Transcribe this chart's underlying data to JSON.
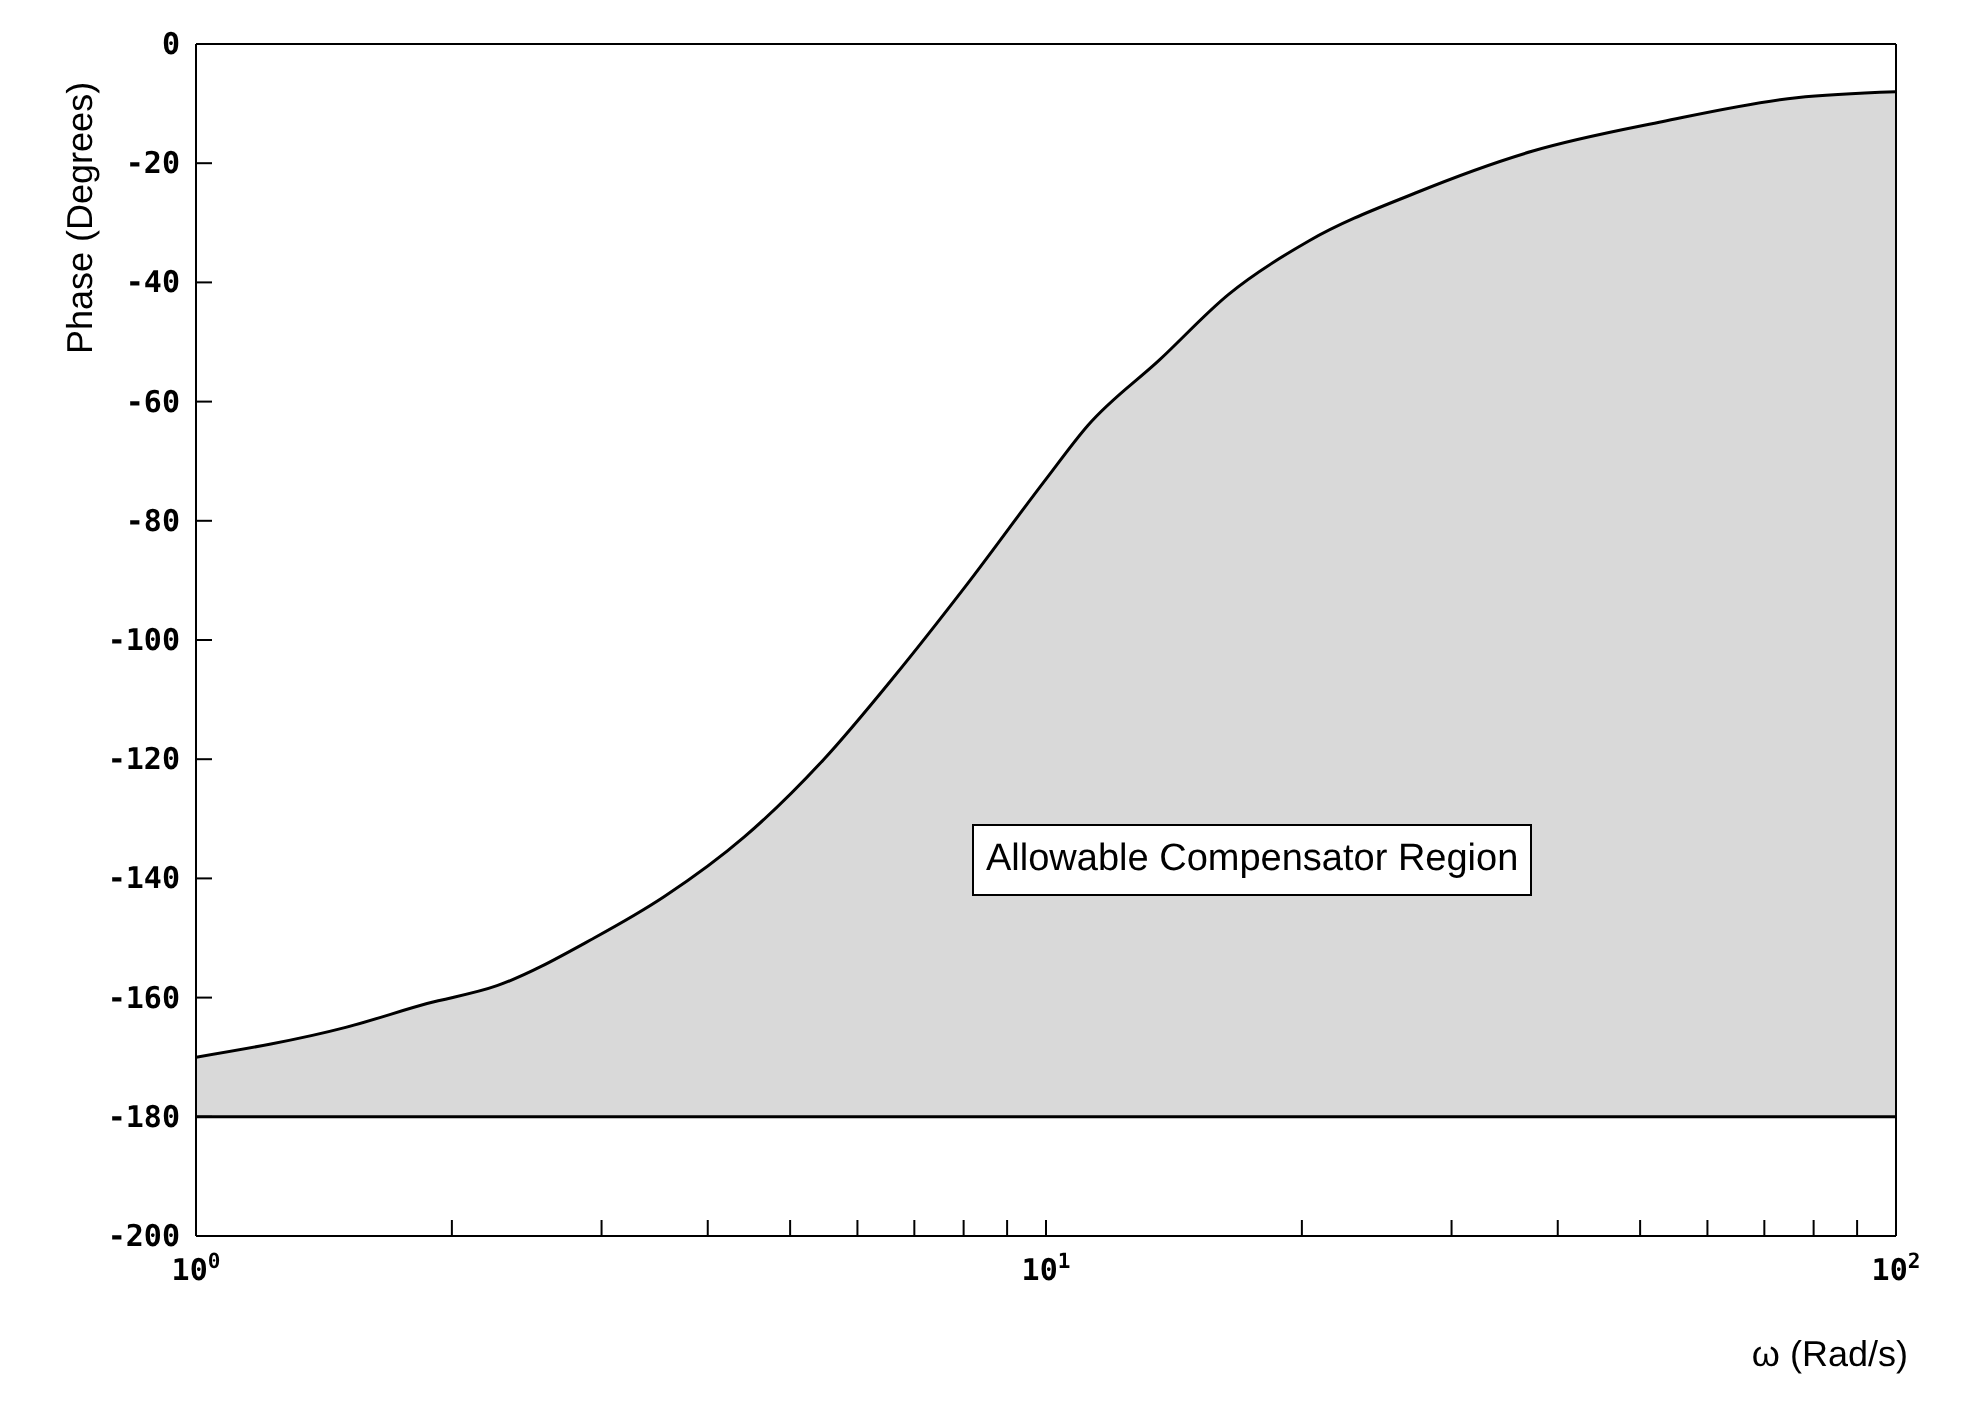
{
  "chart_data": {
    "type": "line",
    "xlabel": "ω (Rad/s)",
    "ylabel": "Phase (Degrees)",
    "x": [
      1,
      1.5,
      1.87,
      2.26,
      2.94,
      3.56,
      4.42,
      5.48,
      6.64,
      8.04,
      10,
      11.2,
      13.6,
      16.4,
      20.4,
      27.2,
      37.3,
      53.2,
      76.4,
      100
    ],
    "series": [
      {
        "color": "#000000",
        "values": [
          -170,
          -165,
          -161,
          -158,
          -150,
          -143,
          -133,
          -120,
          -106,
          -91,
          -73,
          -64,
          -53,
          -42,
          -33,
          -25,
          -18,
          -13,
          -9,
          -8
        ],
        "lower": [
          -180,
          -180,
          -180,
          -180,
          -180,
          -180,
          -180,
          -180,
          -180,
          -180,
          -180,
          -180,
          -180,
          -180,
          -180,
          -180,
          -180,
          -180,
          -180,
          -180
        ],
        "upper": [
          -170,
          -165,
          -161,
          -158,
          -150,
          -143,
          -133,
          -120,
          -106,
          -91,
          -73,
          -64,
          -53,
          -42,
          -33,
          -25,
          -18,
          -13,
          -9,
          -8
        ]
      }
    ],
    "log": "x",
    "xlim": [
      1,
      100
    ],
    "xticks": [
      {
        "value": 1,
        "label": "10$^{0}$"
      },
      {
        "value": 2,
        "label": null
      },
      {
        "value": 3,
        "label": null
      },
      {
        "value": 4,
        "label": null
      },
      {
        "value": 5,
        "label": null
      },
      {
        "value": 6,
        "label": null
      },
      {
        "value": 7,
        "label": null
      },
      {
        "value": 8,
        "label": null
      },
      {
        "value": 9,
        "label": null
      },
      {
        "value": 10,
        "label": "10$^{1}$"
      },
      {
        "value": 20,
        "label": null
      },
      {
        "value": 30,
        "label": null
      },
      {
        "value": 40,
        "label": null
      },
      {
        "value": 50,
        "label": null
      },
      {
        "value": 60,
        "label": null
      },
      {
        "value": 70,
        "label": null
      },
      {
        "value": 80,
        "label": null
      },
      {
        "value": 90,
        "label": null
      },
      {
        "value": 100,
        "label": "10$^{2}$"
      }
    ],
    "ylim": [
      -200,
      0
    ],
    "yticks": [
      0,
      -20,
      -40,
      -60,
      -80,
      -100,
      -120,
      -140,
      -160,
      -180,
      -200
    ],
    "ref_lines": [
      {
        "axis": "y",
        "value": -180,
        "color": "#000000"
      }
    ],
    "annotations": [
      "Allowable Compensator Region"
    ],
    "grid": false,
    "legend": false
  }
}
